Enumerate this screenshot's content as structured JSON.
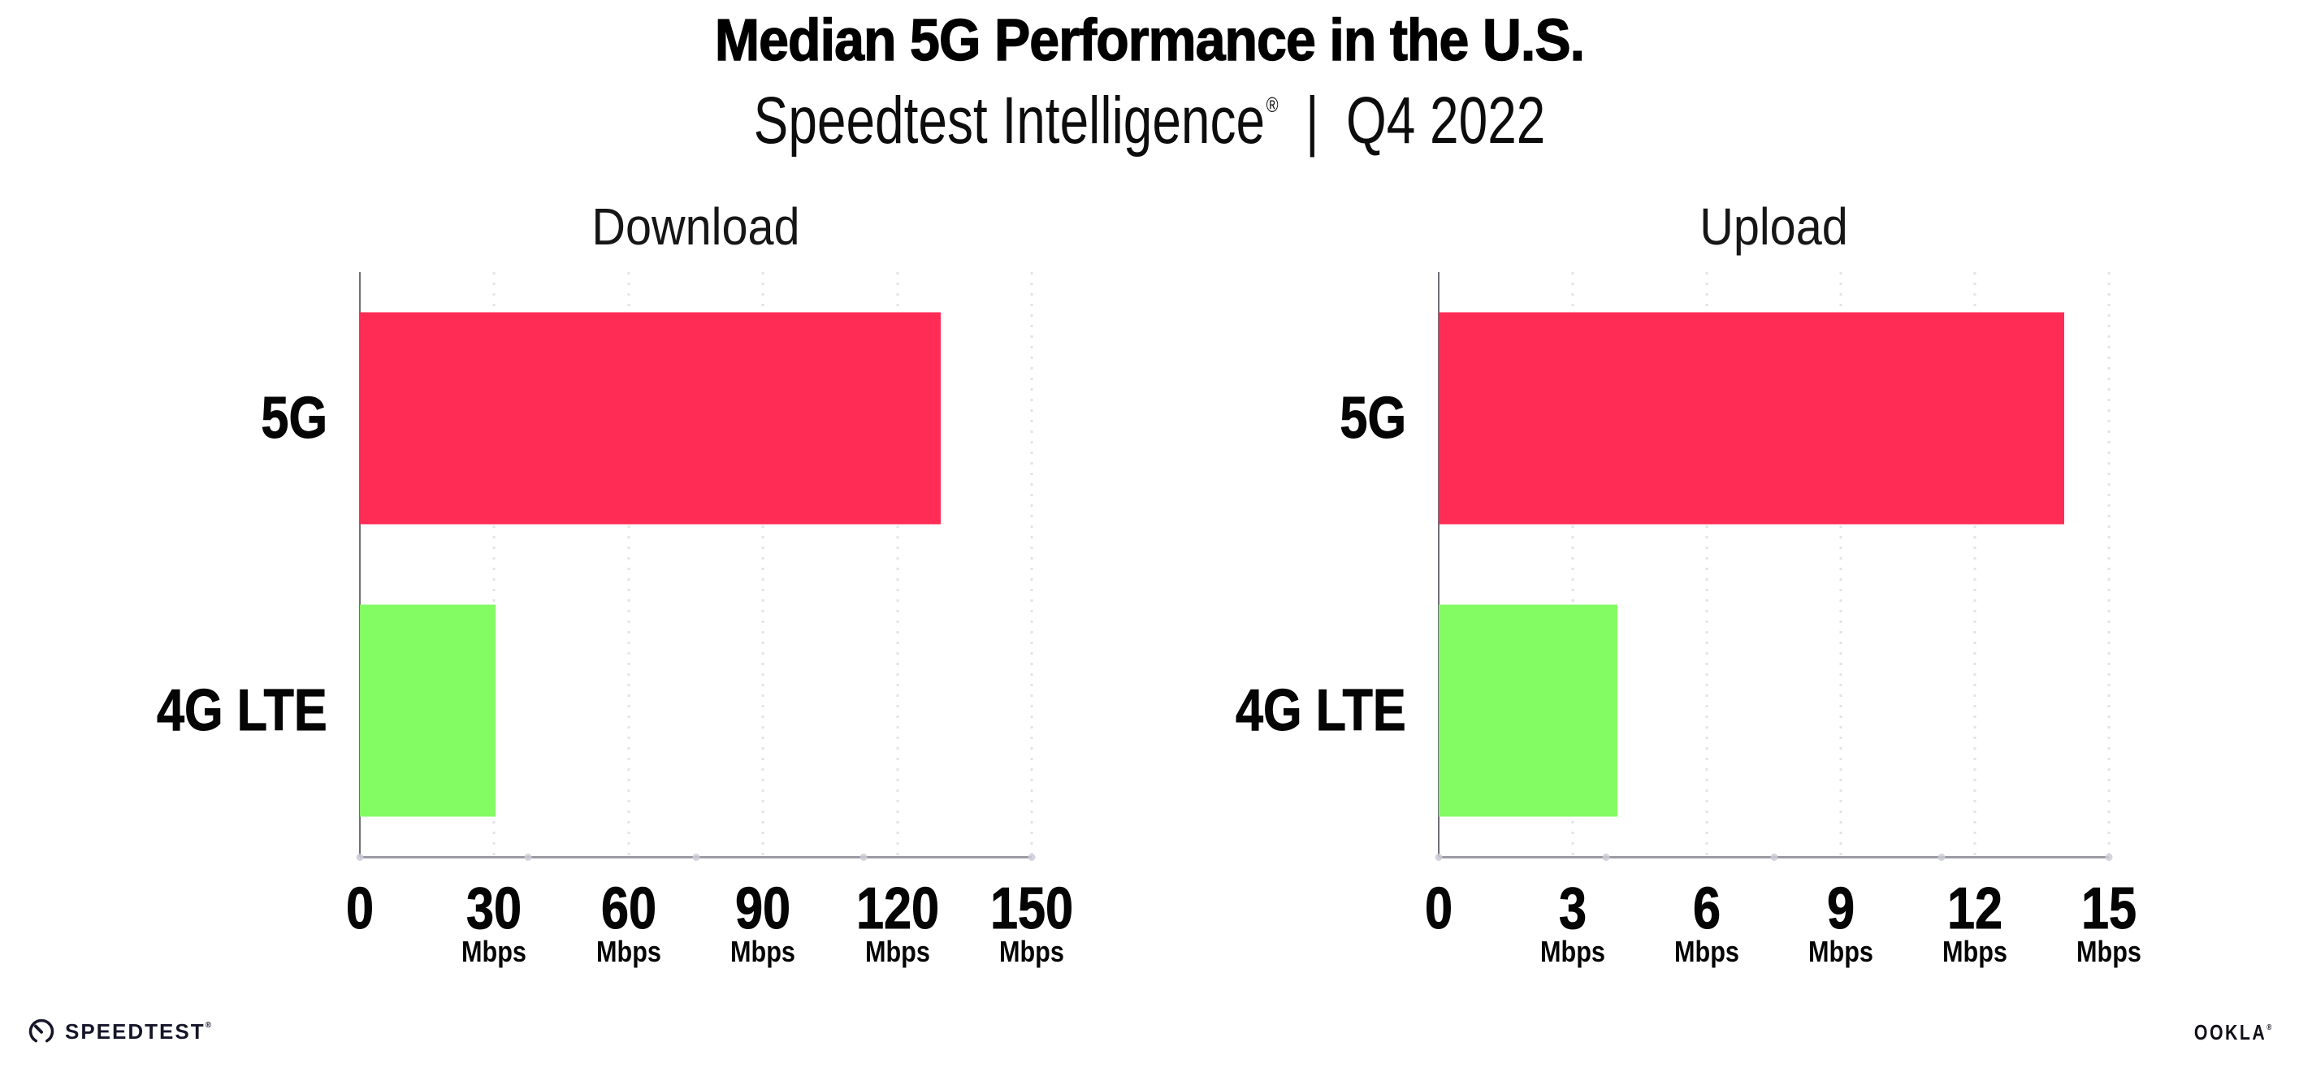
{
  "header": {
    "title": "Median 5G Performance in the U.S.",
    "subtitle": {
      "brand": "Speedtest Intelligence",
      "registered": "®",
      "separator": "|",
      "period": "Q4 2022"
    }
  },
  "chart_data": [
    {
      "type": "bar",
      "orientation": "horizontal",
      "title": "Download",
      "categories": [
        "5G",
        "4G LTE"
      ],
      "values": [
        129.6,
        30.2
      ],
      "unit": "Mbps",
      "xlim": [
        0,
        150
      ],
      "xticks": [
        0,
        30,
        60,
        90,
        120,
        150
      ],
      "tick_units": [
        "",
        "Mbps",
        "Mbps",
        "Mbps",
        "Mbps",
        "Mbps"
      ],
      "bar_colors": [
        "#ff2d55",
        "#83fb63"
      ],
      "grid": "dotted-vertical",
      "legend": "none"
    },
    {
      "type": "bar",
      "orientation": "horizontal",
      "title": "Upload",
      "categories": [
        "5G",
        "4G LTE"
      ],
      "values": [
        14.0,
        4.0
      ],
      "unit": "Mbps",
      "xlim": [
        0,
        15
      ],
      "xticks": [
        0,
        3,
        6,
        9,
        12,
        15
      ],
      "tick_units": [
        "",
        "Mbps",
        "Mbps",
        "Mbps",
        "Mbps",
        "Mbps"
      ],
      "bar_colors": [
        "#ff2d55",
        "#83fb63"
      ],
      "grid": "dotted-vertical",
      "legend": "none"
    }
  ],
  "footer": {
    "speedtest": {
      "label": "SPEEDTEST",
      "registered": "®"
    },
    "ookla": {
      "label": "OOKLA",
      "registered": "®"
    }
  },
  "colors": {
    "bar_5g": "#ff2d55",
    "bar_4g_lte": "#83fb63",
    "axis_line": "#9b9ba3",
    "axis_spine": "#6f6f78",
    "gridline": "#e3e3ee",
    "text": "#050505",
    "background": "#ffffff"
  }
}
